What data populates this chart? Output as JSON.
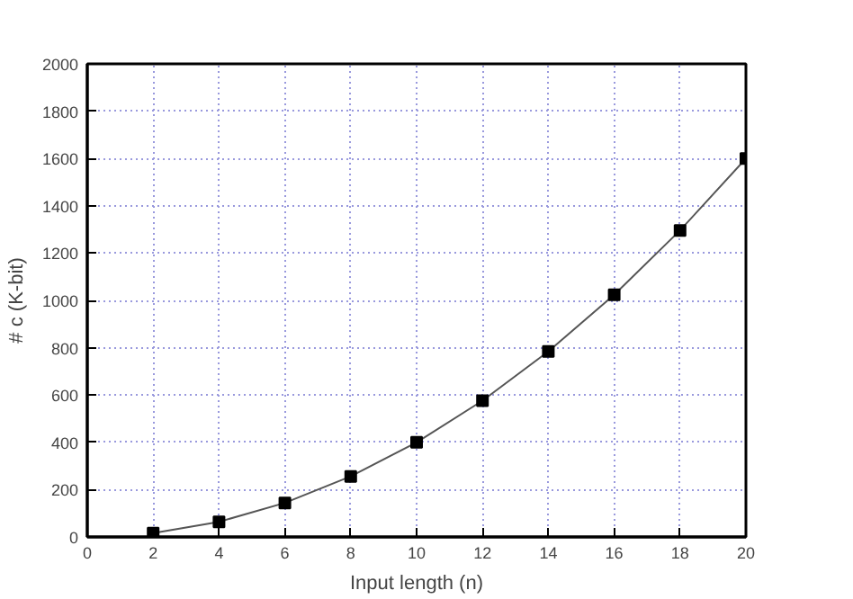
{
  "chart_data": {
    "type": "line",
    "xlabel": "Input length (n)",
    "ylabel": "# c (K-bit)",
    "x": [
      2,
      4,
      6,
      8,
      10,
      12,
      14,
      16,
      18,
      20
    ],
    "series": [
      {
        "color": "#000000",
        "values": [
          16,
          64,
          144,
          256,
          400,
          576,
          784,
          1024,
          1296,
          1600
        ]
      }
    ],
    "xlim": [
      0,
      20
    ],
    "ylim": [
      0,
      2000
    ],
    "xticks": [
      0,
      2,
      4,
      6,
      8,
      10,
      12,
      14,
      16,
      18,
      20
    ],
    "yticks": [
      0,
      200,
      400,
      600,
      800,
      1000,
      1200,
      1400,
      1600,
      1800,
      2000
    ],
    "grid": true,
    "marker": "square",
    "line_style": "solid"
  }
}
